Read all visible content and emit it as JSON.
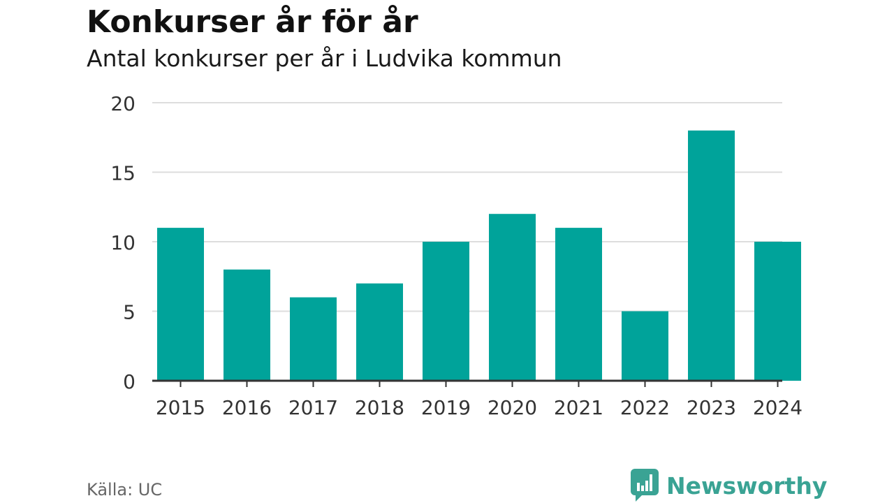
{
  "header": {
    "title": "Konkurser år för år",
    "subtitle": "Antal konkurser per år i Ludvika kommun"
  },
  "footer": {
    "source": "Källa: UC",
    "brand": "Newsworthy"
  },
  "colors": {
    "bar": "#00a39a",
    "grid": "#dddddd",
    "axis": "#333333",
    "brand": "#3aa394"
  },
  "chart_data": {
    "type": "bar",
    "categories": [
      "2015",
      "2016",
      "2017",
      "2018",
      "2019",
      "2020",
      "2021",
      "2022",
      "2023",
      "2024"
    ],
    "values": [
      11,
      8,
      6,
      7,
      10,
      12,
      11,
      5,
      18,
      10
    ],
    "ylim": [
      0,
      20
    ],
    "yticks": [
      0,
      5,
      10,
      15,
      20
    ],
    "grid": true,
    "title": "Konkurser år för år",
    "subtitle": "Antal konkurser per år i Ludvika kommun",
    "xlabel": "",
    "ylabel": ""
  }
}
